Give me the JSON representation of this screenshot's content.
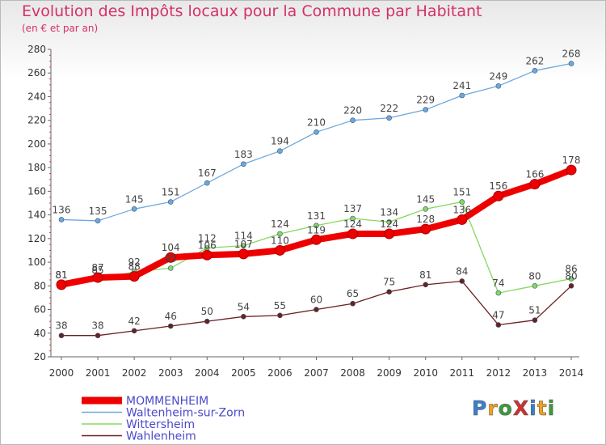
{
  "title": "Evolution des Impôts locaux pour la Commune par Habitant",
  "subtitle": "(en € et par an)",
  "logo": {
    "text": "ProXiti",
    "letters": [
      "P",
      "r",
      "o",
      "X",
      "i",
      "t",
      "i"
    ],
    "colors": [
      "#3a7fd0",
      "#f0a020",
      "#3a9a3a",
      "#d03030",
      "#3a7fd0",
      "#f0a020",
      "#3a9a3a"
    ]
  },
  "chart_data": {
    "type": "line",
    "title": "Evolution des Impôts locaux pour la Commune par Habitant",
    "subtitle": "(en € et par an)",
    "xlabel": "",
    "ylabel": "",
    "x": [
      2000,
      2001,
      2002,
      2003,
      2004,
      2005,
      2006,
      2007,
      2008,
      2009,
      2010,
      2011,
      2012,
      2013,
      2014
    ],
    "ylim": [
      20,
      280
    ],
    "yticks": [
      20,
      40,
      60,
      80,
      100,
      120,
      140,
      160,
      180,
      200,
      220,
      240,
      260,
      280
    ],
    "grid": false,
    "legend_position": "bottom",
    "series": [
      {
        "name": "MOMMENHEIM",
        "color": "#ee0000",
        "bold": true,
        "values": [
          81,
          87,
          88,
          104,
          106,
          107,
          110,
          119,
          124,
          124,
          128,
          136,
          156,
          166,
          178
        ]
      },
      {
        "name": "Waltenheim-sur-Zorn",
        "color": "#6fa8dc",
        "bold": false,
        "values": [
          136,
          135,
          145,
          151,
          167,
          183,
          194,
          210,
          220,
          222,
          229,
          241,
          249,
          262,
          268
        ]
      },
      {
        "name": "Wittersheim",
        "color": "#86d860",
        "bold": false,
        "values": [
          81,
          85,
          92,
          95,
          112,
          114,
          124,
          131,
          137,
          134,
          145,
          151,
          74,
          80,
          86
        ]
      },
      {
        "name": "Wahlenheim",
        "color": "#6b2020",
        "bold": false,
        "values": [
          38,
          38,
          42,
          46,
          50,
          54,
          55,
          60,
          65,
          75,
          81,
          84,
          47,
          51,
          80
        ]
      }
    ]
  }
}
